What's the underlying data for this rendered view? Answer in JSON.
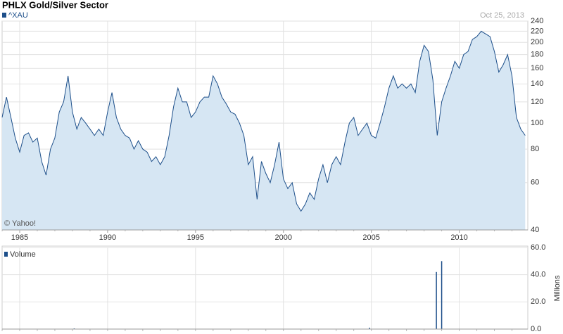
{
  "chart_data": [
    {
      "type": "area",
      "title": "PHLX Gold/Silver Sector",
      "date_label": "Oct 25, 2013",
      "credit": "© Yahoo!",
      "x": [
        1984.0,
        1984.25,
        1984.5,
        1984.75,
        1985.0,
        1985.25,
        1985.5,
        1985.75,
        1986.0,
        1986.25,
        1986.5,
        1986.75,
        1987.0,
        1987.25,
        1987.5,
        1987.75,
        1988.0,
        1988.25,
        1988.5,
        1988.75,
        1989.0,
        1989.25,
        1989.5,
        1989.75,
        1990.0,
        1990.25,
        1990.5,
        1990.75,
        1991.0,
        1991.25,
        1991.5,
        1991.75,
        1992.0,
        1992.25,
        1992.5,
        1992.75,
        1993.0,
        1993.25,
        1993.5,
        1993.75,
        1994.0,
        1994.25,
        1994.5,
        1994.75,
        1995.0,
        1995.25,
        1995.5,
        1995.75,
        1996.0,
        1996.25,
        1996.5,
        1996.75,
        1997.0,
        1997.25,
        1997.5,
        1997.75,
        1998.0,
        1998.25,
        1998.5,
        1998.75,
        1999.0,
        1999.25,
        1999.5,
        1999.75,
        2000.0,
        2000.25,
        2000.5,
        2000.75,
        2001.0,
        2001.25,
        2001.5,
        2001.75,
        2002.0,
        2002.25,
        2002.5,
        2002.75,
        2003.0,
        2003.25,
        2003.5,
        2003.75,
        2004.0,
        2004.25,
        2004.5,
        2004.75,
        2005.0,
        2005.25,
        2005.5,
        2005.75,
        2006.0,
        2006.25,
        2006.5,
        2006.75,
        2007.0,
        2007.25,
        2007.5,
        2007.75,
        2008.0,
        2008.25,
        2008.5,
        2008.75,
        2009.0,
        2009.25,
        2009.5,
        2009.75,
        2010.0,
        2010.25,
        2010.5,
        2010.75,
        2011.0,
        2011.25,
        2011.5,
        2011.75,
        2012.0,
        2012.25,
        2012.5,
        2012.75,
        2013.0,
        2013.25,
        2013.5,
        2013.75
      ],
      "series": [
        {
          "name": "^XAU",
          "color": "#1d4f8a",
          "fill": "#d6e6f3",
          "values": [
            105,
            125,
            105,
            88,
            78,
            90,
            92,
            85,
            88,
            72,
            64,
            80,
            88,
            110,
            120,
            150,
            110,
            95,
            105,
            100,
            95,
            90,
            95,
            90,
            110,
            130,
            105,
            95,
            90,
            88,
            80,
            86,
            80,
            78,
            72,
            75,
            70,
            75,
            90,
            115,
            135,
            120,
            120,
            105,
            110,
            120,
            125,
            125,
            150,
            140,
            125,
            118,
            110,
            108,
            100,
            90,
            70,
            75,
            52,
            72,
            65,
            60,
            70,
            85,
            62,
            57,
            60,
            50,
            47,
            50,
            55,
            52,
            62,
            70,
            60,
            70,
            75,
            70,
            85,
            100,
            105,
            90,
            95,
            100,
            90,
            88,
            100,
            115,
            135,
            150,
            135,
            140,
            135,
            140,
            130,
            170,
            195,
            185,
            145,
            90,
            120,
            135,
            150,
            170,
            160,
            180,
            185,
            205,
            210,
            220,
            215,
            210,
            185,
            155,
            165,
            180,
            150,
            105,
            95,
            90
          ]
        }
      ],
      "xlim": [
        1984.0,
        2013.9
      ],
      "xticks": [
        1985,
        1990,
        1995,
        2000,
        2005,
        2010
      ],
      "ylim": [
        40,
        240
      ],
      "yticks": [
        40,
        60,
        80,
        100,
        120,
        140,
        160,
        180,
        200,
        220,
        240
      ],
      "log_scale": true,
      "grid": true
    },
    {
      "type": "bar",
      "x": [
        1988.1,
        2004.9,
        2008.7,
        2009.0
      ],
      "series": [
        {
          "name": "Volume",
          "color": "#1d4f8a",
          "values": [
            0.5,
            1,
            42,
            50
          ]
        }
      ],
      "xlim": [
        1984.0,
        2013.9
      ],
      "ylim": [
        0,
        60
      ],
      "yticks": [
        {
          "value": 0,
          "label": "0.0"
        },
        {
          "value": 20,
          "label": "20.0"
        },
        {
          "value": 40,
          "label": "40.0"
        },
        {
          "value": 60,
          "label": "60.0"
        }
      ],
      "y_label": "Millions",
      "grid": true
    }
  ]
}
